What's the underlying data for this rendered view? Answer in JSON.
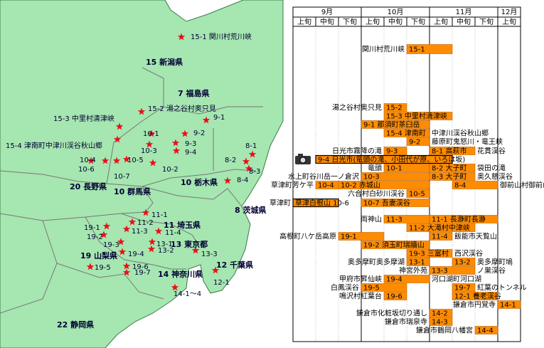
{
  "map": {
    "prefectures": [
      "15 新潟県",
      "7 福島県",
      "20 長野県",
      "10 群馬県",
      "10 栃木県",
      "8 茨城県",
      "11 埼玉県",
      "13 東京都",
      "19 山梨県",
      "14 神奈川県",
      "12 千葉県",
      "22 静岡県"
    ],
    "spots": [
      "15-1 関川村荒川峡",
      "15-2 湯之谷村奥只見",
      "15-3 中里村清津峡",
      "15-4 津南町中津川渓谷秋山郷",
      "9-1",
      "9-2",
      "9-3",
      "9-4",
      "10-1",
      "10-2",
      "10-3",
      "10-4",
      "10-5",
      "10-6",
      "10-7",
      "8-1",
      "8-2",
      "8-3",
      "8-4",
      "11-1",
      "11-2",
      "11-3",
      "11-4",
      "19-1",
      "19-2",
      "19-3",
      "19-4",
      "19-5",
      "19-6",
      "19-7",
      "13-1",
      "13-2",
      "13-3",
      "12-1",
      "14-1～4"
    ]
  },
  "schedule": {
    "months": [
      {
        "label": "9月",
        "periods": [
          "上旬",
          "中旬",
          "下旬"
        ]
      },
      {
        "label": "10月",
        "periods": [
          "上旬",
          "中旬",
          "下旬"
        ]
      },
      {
        "label": "11月",
        "periods": [
          "上旬",
          "中旬",
          "下旬"
        ]
      },
      {
        "label": "12月",
        "periods": [
          "上旬"
        ]
      }
    ],
    "rows": [
      {
        "label": "関川村荒川峡",
        "bars": [
          {
            "text": "15-1",
            "start": 5,
            "end": 7
          }
        ]
      },
      {
        "label": "湯之谷村奥只見",
        "bars": [
          {
            "text": "15-2",
            "start": 4,
            "end": 5
          }
        ]
      },
      {
        "bars": [
          {
            "text": "15-3 中里村清津峡",
            "start": 4,
            "end": 7
          }
        ]
      },
      {
        "bars": [
          {
            "text": "9-1 那須町茶臼岳",
            "start": 3,
            "end": 6
          }
        ]
      },
      {
        "bars": [
          {
            "text": "15-4 津南町",
            "start": 4,
            "end": 6
          }
        ],
        "note": "中津川渓谷秋山郷"
      },
      {
        "bars": [
          {
            "text": "9-2",
            "start": 5,
            "end": 6
          }
        ],
        "note": "藤原町鬼怒川・竜王峡"
      },
      {
        "label": "日光市霧降の滝",
        "bars": [
          {
            "text": "9-3",
            "start": 4,
            "end": 5
          },
          {
            "text": "8-1 高萩市",
            "start": 6,
            "end": 8
          }
        ],
        "note": "花貫渓谷"
      },
      {
        "bars": [
          {
            "text": "9-4 日光市(竜頭の滝、小田代が原、いろは坂)",
            "start": 1,
            "end": 7,
            "highlight": true
          }
        ]
      },
      {
        "label": "竜頭",
        "bars": [
          {
            "text": "10-1",
            "start": 4,
            "end": 6
          },
          {
            "text": "8-2 大子町",
            "start": 6,
            "end": 8
          }
        ],
        "note": "袋田の滝"
      },
      {
        "label": "水上町谷川岳一ノ倉沢",
        "bars": [
          {
            "text": "10-3",
            "start": 3,
            "end": 6
          },
          {
            "text": "8-3 大子町",
            "start": 6,
            "end": 8
          }
        ],
        "note": "奥久慈渓谷"
      },
      {
        "label": "草津町芳ケ平",
        "bars": [
          {
            "text": "10-4",
            "start": 1,
            "end": 2
          },
          {
            "text": "10-2 赤城山",
            "start": 2,
            "end": 6
          },
          {
            "text": "8-4",
            "start": 7,
            "end": 9
          }
        ],
        "note": "御前山村御前山"
      },
      {
        "label": "六合村白砂川渓谷",
        "bars": [
          {
            "text": "10-5",
            "start": 5,
            "end": 6
          }
        ]
      },
      {
        "label": "草津町",
        "bars": [
          {
            "text": "草津白根山 10-6",
            "start": 0,
            "end": 2,
            "highlight": true
          },
          {
            "text": "10-7 吾妻渓谷",
            "start": 3,
            "end": 6
          }
        ]
      },
      {
        "label": "両神山",
        "bars": [
          {
            "text": "11-3",
            "start": 4,
            "end": 6
          },
          {
            "text": "11-1 長瀞町長瀞",
            "start": 6,
            "end": 9
          }
        ]
      },
      {
        "bars": [
          {
            "text": "11-2 大滝村中津峡",
            "start": 5,
            "end": 8
          }
        ]
      },
      {
        "label": "高根町八ケ岳高原",
        "bars": [
          {
            "text": "19-1",
            "start": 2,
            "end": 4
          },
          {
            "text": "11-4",
            "start": 6,
            "end": 7
          }
        ],
        "note": "飯能市天覧山"
      },
      {
        "bars": [
          {
            "text": "19-2 須玉町瑞牆山",
            "start": 3,
            "end": 6
          }
        ]
      },
      {
        "bars": [
          {
            "text": "19-3 三富村",
            "start": 5,
            "end": 7
          }
        ],
        "note": "西沢渓谷"
      },
      {
        "label": "奥多摩町奥多摩湖",
        "bars": [
          {
            "text": "13-1",
            "start": 5,
            "end": 6
          },
          {
            "text": "13-2",
            "start": 7,
            "end": 8
          }
        ],
        "note": "奥多摩町鳩"
      },
      {
        "label": "神宮外苑",
        "bars": [
          {
            "text": "13-3",
            "start": 6,
            "end": 8
          }
        ],
        "note": "ノ巣渓谷"
      },
      {
        "label": "甲府市昇仙峡",
        "bars": [
          {
            "text": "19-4",
            "start": 4,
            "end": 6
          }
        ],
        "note": "河口湖町河口湖"
      },
      {
        "label": "白鳳渓谷",
        "bars": [
          {
            "text": "19-5",
            "start": 3,
            "end": 5
          },
          {
            "text": "19-7",
            "start": 7,
            "end": 8
          }
        ],
        "note": "紅葉のトンネル"
      },
      {
        "label": "鳴沢村紅葉台",
        "bars": [
          {
            "text": "19-6",
            "start": 4,
            "end": 5
          },
          {
            "text": "12-1 養老渓谷",
            "start": 7,
            "end": 9
          }
        ]
      },
      {
        "label": "鎌倉市円覚寺",
        "bars": [
          {
            "text": "14-1",
            "start": 9,
            "end": 10
          }
        ]
      },
      {
        "label": "鎌倉市化粧坂切り通し",
        "bars": [
          {
            "text": "14-2",
            "start": 6,
            "end": 7
          }
        ]
      },
      {
        "label": "鎌倉市瑞泉寺",
        "bars": [
          {
            "text": "14-3",
            "start": 6,
            "end": 7
          }
        ]
      },
      {
        "label": "鎌倉市鶴岡八幡宮",
        "bars": [
          {
            "text": "14-4",
            "start": 8,
            "end": 9
          }
        ]
      }
    ]
  }
}
